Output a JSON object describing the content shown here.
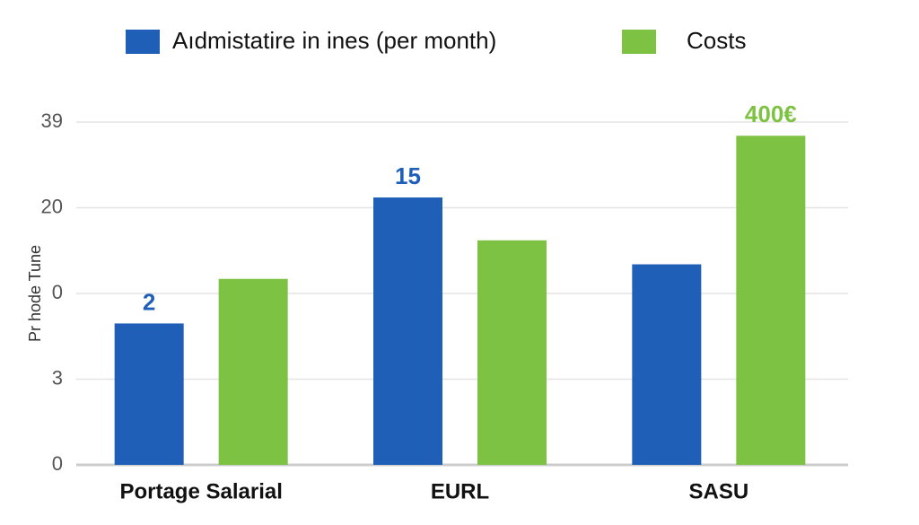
{
  "chart_data": {
    "type": "bar",
    "categories": [
      "Portage Salarial",
      "EURL",
      "SASU"
    ],
    "series": [
      {
        "name": "Aıdmistatire in ines (per month)",
        "color": "#1f5fb8",
        "values": [
          1.65,
          3.12,
          2.34
        ]
      },
      {
        "name": "Costs",
        "color": "#7dc242",
        "values": [
          2.17,
          2.62,
          3.84
        ]
      }
    ],
    "y_label": "Pr hode Tune",
    "ylim": [
      0,
      4
    ],
    "yticks": [
      0,
      {
        "value": 1,
        "label": "3"
      },
      {
        "value": 2,
        "label": "0"
      },
      {
        "value": 3,
        "label": "20"
      },
      {
        "value": 4,
        "label": "39"
      }
    ],
    "grid": true,
    "legend": "top",
    "annotations": [
      {
        "text": "2",
        "category": "Portage Salarial",
        "series": "Aıdmistatire in ines (per month)"
      },
      {
        "text": "15",
        "category": "EURL",
        "series": "Aıdmistatire in ines (per month)"
      },
      {
        "text": "400€",
        "category": "SASU",
        "series": "Costs"
      }
    ]
  }
}
